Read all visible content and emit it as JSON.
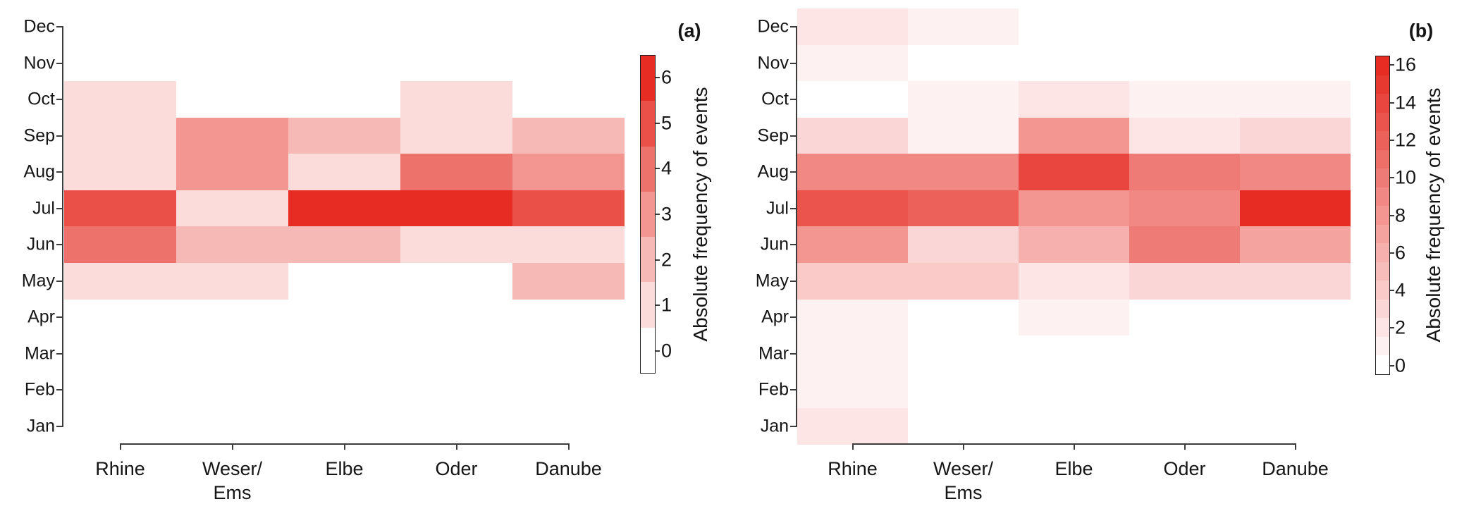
{
  "figure": {
    "background_color": "#ffffff",
    "axis_color": "#3c3c3c",
    "text_color": "#151515"
  },
  "chart_data": [
    {
      "type": "heatmap",
      "panel_label": "(a)",
      "title": "",
      "x_categories": [
        "Rhine",
        "Weser/Ems",
        "Elbe",
        "Oder",
        "Danube"
      ],
      "x_category_label_lines": [
        [
          "Rhine"
        ],
        [
          "Weser/",
          "Ems"
        ],
        [
          "Elbe"
        ],
        [
          "Oder"
        ],
        [
          "Danube"
        ]
      ],
      "y_categories": [
        "Jan",
        "Feb",
        "Mar",
        "Apr",
        "May",
        "Jun",
        "Jul",
        "Aug",
        "Sep",
        "Oct",
        "Nov",
        "Dec"
      ],
      "y_axis_display_order": "Dec at top to Jan at bottom",
      "legend_position": "right",
      "grid": false,
      "colorbar": {
        "label": "Absolute frequency of events",
        "ticks": [
          0,
          1,
          2,
          3,
          4,
          5,
          6
        ],
        "min": 0,
        "max": 6,
        "bands": 7,
        "low_color": "#ffffff",
        "high_color": "#e62c23"
      },
      "series": [
        {
          "name": "Rhine",
          "values": [
            0,
            0,
            0,
            0,
            1,
            4,
            5,
            1,
            1,
            1,
            0,
            0
          ]
        },
        {
          "name": "Weser/Ems",
          "values": [
            0,
            0,
            0,
            0,
            1,
            2,
            1,
            3,
            3,
            0,
            0,
            0
          ]
        },
        {
          "name": "Elbe",
          "values": [
            0,
            0,
            0,
            0,
            0,
            2,
            6,
            1,
            2,
            0,
            0,
            0
          ]
        },
        {
          "name": "Oder",
          "values": [
            0,
            0,
            0,
            0,
            0,
            1,
            6,
            4,
            1,
            1,
            0,
            0
          ]
        },
        {
          "name": "Danube",
          "values": [
            0,
            0,
            0,
            0,
            2,
            1,
            5,
            3,
            2,
            0,
            0,
            0
          ]
        }
      ]
    },
    {
      "type": "heatmap",
      "panel_label": "(b)",
      "title": "",
      "x_categories": [
        "Rhine",
        "Weser/Ems",
        "Elbe",
        "Oder",
        "Danube"
      ],
      "x_category_label_lines": [
        [
          "Rhine"
        ],
        [
          "Weser/",
          "Ems"
        ],
        [
          "Elbe"
        ],
        [
          "Oder"
        ],
        [
          "Danube"
        ]
      ],
      "y_categories": [
        "Jan",
        "Feb",
        "Mar",
        "Apr",
        "May",
        "Jun",
        "Jul",
        "Aug",
        "Sep",
        "Oct",
        "Nov",
        "Dec"
      ],
      "y_axis_display_order": "Dec at top to Jan at bottom",
      "legend_position": "right",
      "grid": false,
      "colorbar": {
        "label": "Absolute frequency of events",
        "ticks": [
          0,
          2,
          4,
          6,
          8,
          10,
          12,
          14,
          16
        ],
        "min": 0,
        "max": 16,
        "bands": 17,
        "low_color": "#ffffff",
        "high_color": "#e62c23"
      },
      "series": [
        {
          "name": "Rhine",
          "values": [
            2,
            1,
            1,
            1,
            4,
            8,
            13,
            9,
            3,
            0,
            1,
            2
          ]
        },
        {
          "name": "Weser/Ems",
          "values": [
            0,
            0,
            0,
            0,
            4,
            3,
            12,
            9,
            1,
            1,
            0,
            1
          ]
        },
        {
          "name": "Elbe",
          "values": [
            0,
            0,
            0,
            1,
            2,
            6,
            8,
            14,
            8,
            2,
            0,
            0
          ]
        },
        {
          "name": "Oder",
          "values": [
            0,
            0,
            0,
            0,
            3,
            10,
            9,
            10,
            2,
            1,
            0,
            0
          ]
        },
        {
          "name": "Danube",
          "values": [
            0,
            0,
            0,
            0,
            3,
            7,
            16,
            9,
            3,
            1,
            0,
            0
          ]
        }
      ]
    }
  ]
}
